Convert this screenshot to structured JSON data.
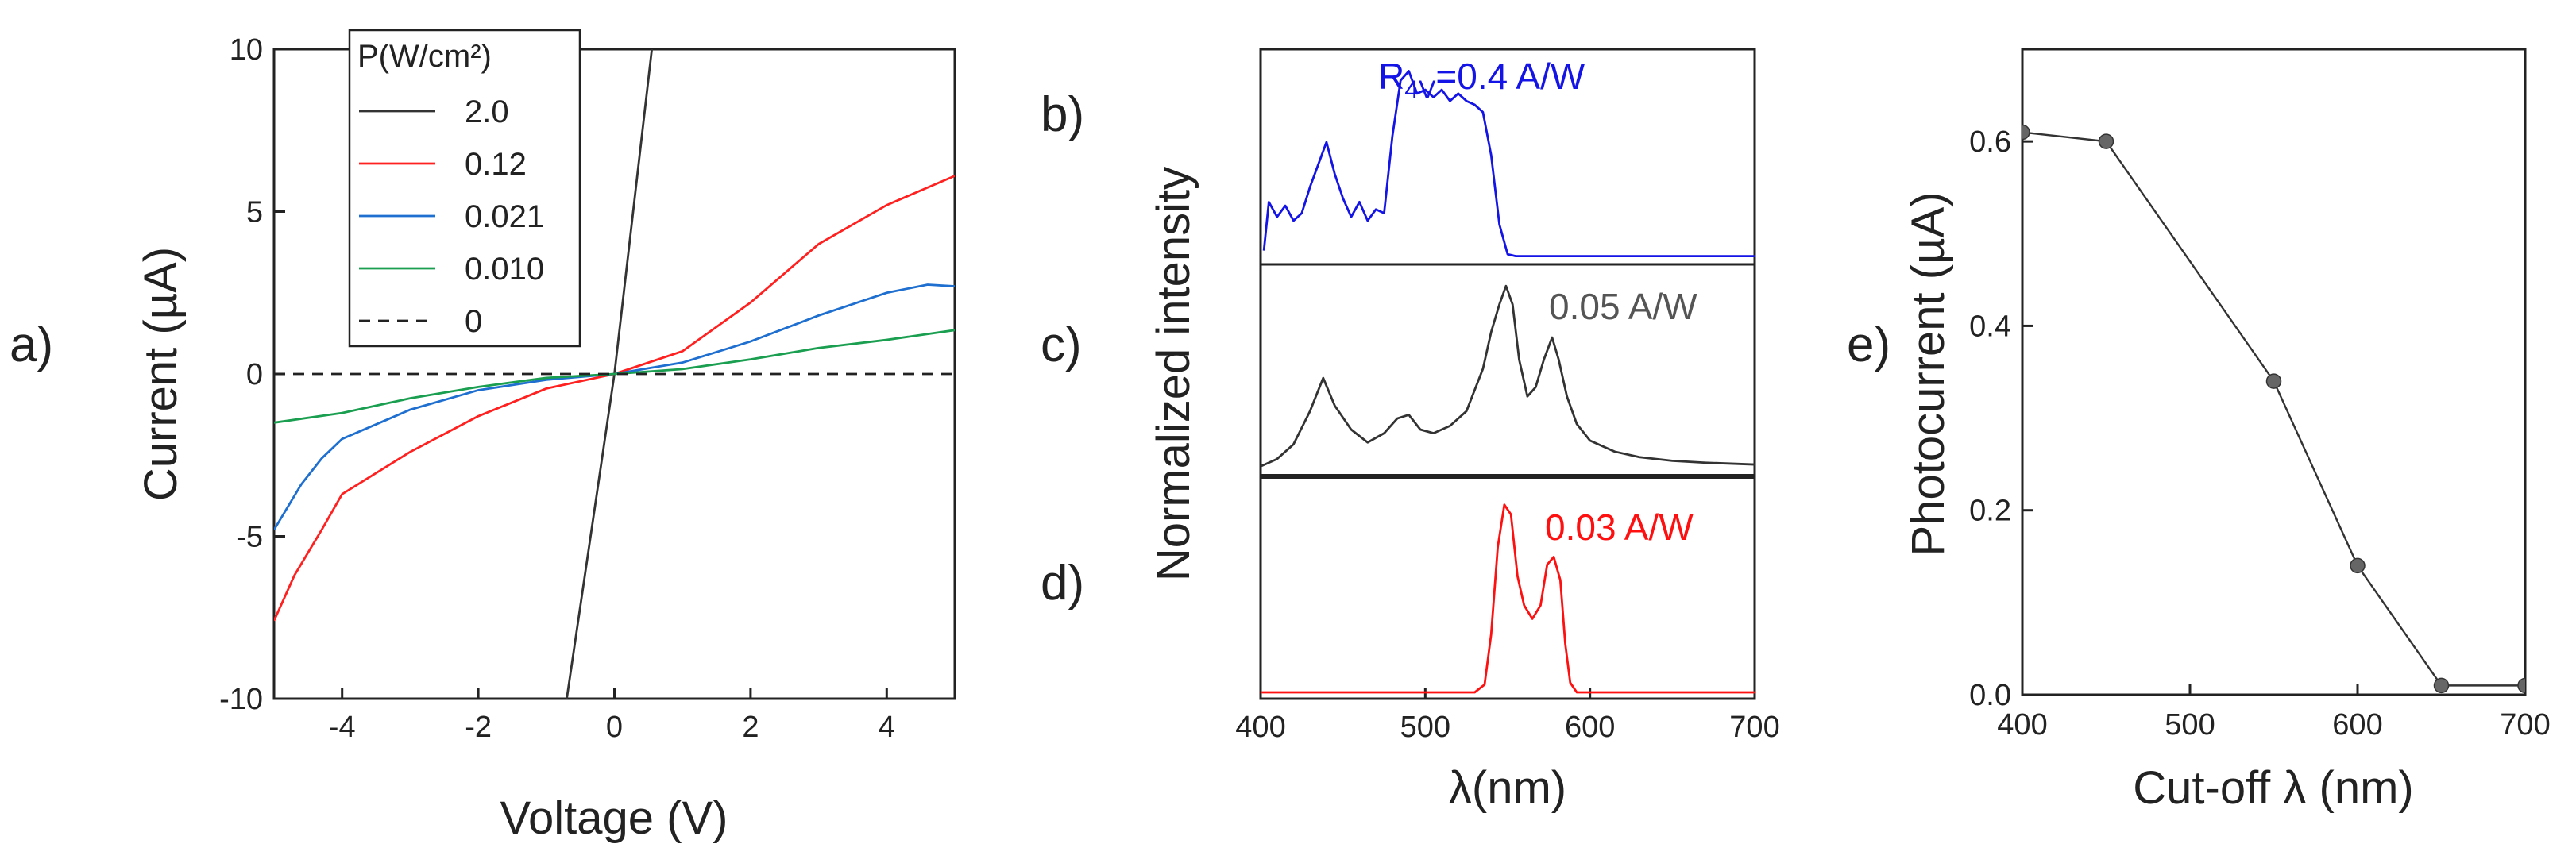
{
  "chart_data": [
    {
      "id": "a",
      "panel_label": "a)",
      "type": "line",
      "xlabel": "Voltage (V)",
      "ylabel": "Current (µA)",
      "xlim": [
        -5,
        5
      ],
      "ylim": [
        -10,
        10
      ],
      "xticks": [
        -4,
        -2,
        0,
        2,
        4
      ],
      "xtick_labels": [
        "-4",
        "-2",
        "0",
        "2",
        "4"
      ],
      "yticks": [
        -10,
        -5,
        0,
        5,
        10
      ],
      "ytick_labels": [
        "-10",
        "-5",
        "0",
        "5",
        "10"
      ],
      "legend_title": "P(W/cm²)",
      "legend_position": "top-left",
      "series": [
        {
          "name": "2.0",
          "color": "#333333",
          "dash": "solid",
          "x": [
            -0.7,
            0.0,
            0.55
          ],
          "y": [
            -10,
            0,
            10
          ]
        },
        {
          "name": "0.12",
          "color": "#ff2020",
          "dash": "solid",
          "x": [
            -5,
            -4.7,
            -4.3,
            -4,
            -3,
            -2,
            -1,
            0,
            1,
            2,
            3,
            4,
            5
          ],
          "y": [
            -7.6,
            -6.2,
            -4.8,
            -3.7,
            -2.4,
            -1.3,
            -0.45,
            0,
            0.7,
            2.2,
            4.0,
            5.2,
            6.1
          ]
        },
        {
          "name": "0.021",
          "color": "#1e6fd0",
          "dash": "solid",
          "x": [
            -5,
            -4.6,
            -4.3,
            -4,
            -3,
            -2,
            -1,
            0,
            1,
            2,
            3,
            4,
            4.6,
            5
          ],
          "y": [
            -4.8,
            -3.4,
            -2.6,
            -2.0,
            -1.1,
            -0.5,
            -0.18,
            0,
            0.35,
            1.0,
            1.8,
            2.5,
            2.75,
            2.7
          ]
        },
        {
          "name": "0.010",
          "color": "#1a9e50",
          "dash": "solid",
          "x": [
            -5,
            -4,
            -3,
            -2,
            -1,
            0,
            1,
            2,
            3,
            4,
            5
          ],
          "y": [
            -1.5,
            -1.2,
            -0.75,
            -0.4,
            -0.12,
            0,
            0.15,
            0.45,
            0.8,
            1.05,
            1.35
          ]
        },
        {
          "name": "0",
          "color": "#222222",
          "dash": "dashed",
          "x": [
            -5,
            5
          ],
          "y": [
            0,
            0
          ]
        }
      ]
    },
    {
      "id": "bcd",
      "type": "line",
      "xlabel": "λ(nm)",
      "ylabel": "Normalized intensity",
      "xlim": [
        400,
        700
      ],
      "xticks": [
        400,
        500,
        600,
        700
      ],
      "xtick_labels": [
        "400",
        "500",
        "600",
        "700"
      ],
      "subplots": [
        {
          "panel_label": "b)",
          "annotation": "R4V=0.4 A/W",
          "annotation_base": "R",
          "annotation_sub": "4V",
          "annotation_rest": "=0.4 A/W",
          "color": "#1414e6",
          "ylim": [
            0,
            1.1
          ],
          "x": [
            402,
            405,
            410,
            415,
            420,
            425,
            430,
            435,
            440,
            445,
            450,
            455,
            460,
            465,
            470,
            475,
            480,
            485,
            490,
            495,
            500,
            505,
            510,
            515,
            520,
            525,
            530,
            535,
            540,
            545,
            550,
            555,
            600,
            650,
            700
          ],
          "y": [
            0.04,
            0.3,
            0.22,
            0.28,
            0.2,
            0.24,
            0.38,
            0.5,
            0.62,
            0.45,
            0.32,
            0.22,
            0.3,
            0.2,
            0.26,
            0.24,
            0.65,
            0.95,
            1.0,
            0.88,
            0.9,
            0.86,
            0.9,
            0.84,
            0.88,
            0.84,
            0.82,
            0.78,
            0.55,
            0.18,
            0.02,
            0.01,
            0.01,
            0.01,
            0.01
          ]
        },
        {
          "panel_label": "c)",
          "annotation": "0.05 A/W",
          "color": "#333333",
          "ylim": [
            0,
            1.1
          ],
          "x": [
            400,
            410,
            420,
            430,
            438,
            445,
            455,
            465,
            475,
            483,
            490,
            497,
            505,
            515,
            525,
            535,
            540,
            545,
            549,
            553,
            557,
            562,
            567,
            572,
            577,
            581,
            586,
            592,
            600,
            615,
            630,
            650,
            670,
            700
          ],
          "y": [
            0.02,
            0.06,
            0.14,
            0.32,
            0.5,
            0.35,
            0.22,
            0.15,
            0.2,
            0.28,
            0.3,
            0.22,
            0.2,
            0.24,
            0.32,
            0.55,
            0.75,
            0.9,
            1.0,
            0.9,
            0.6,
            0.4,
            0.45,
            0.6,
            0.72,
            0.6,
            0.4,
            0.25,
            0.16,
            0.1,
            0.07,
            0.05,
            0.04,
            0.03
          ]
        },
        {
          "panel_label": "d)",
          "annotation": "0.03 A/W",
          "color": "#ff1010",
          "ylim": [
            0,
            1.1
          ],
          "x": [
            400,
            530,
            536,
            540,
            544,
            548,
            552,
            556,
            560,
            565,
            570,
            574,
            578,
            582,
            585,
            588,
            592,
            600,
            700
          ],
          "y": [
            0,
            0,
            0.04,
            0.3,
            0.75,
            0.97,
            0.92,
            0.6,
            0.45,
            0.38,
            0.45,
            0.66,
            0.7,
            0.58,
            0.25,
            0.05,
            0.0,
            0,
            0
          ]
        }
      ]
    },
    {
      "id": "e",
      "panel_label": "e)",
      "type": "line",
      "xlabel": "Cut-off λ (nm)",
      "ylabel": "Photocurrent (µA)",
      "xlim": [
        400,
        700
      ],
      "ylim": [
        0,
        0.7
      ],
      "xticks": [
        400,
        500,
        600,
        700
      ],
      "xtick_labels": [
        "400",
        "500",
        "600",
        "700"
      ],
      "yticks": [
        0,
        0.2,
        0.4,
        0.6
      ],
      "ytick_labels": [
        "0.0",
        "0.2",
        "0.4",
        "0.6"
      ],
      "color": "#333333",
      "marker_color": "#666666",
      "x": [
        400,
        450,
        550,
        600,
        650,
        700
      ],
      "y": [
        0.61,
        0.6,
        0.34,
        0.14,
        0.01,
        0.01
      ]
    }
  ]
}
